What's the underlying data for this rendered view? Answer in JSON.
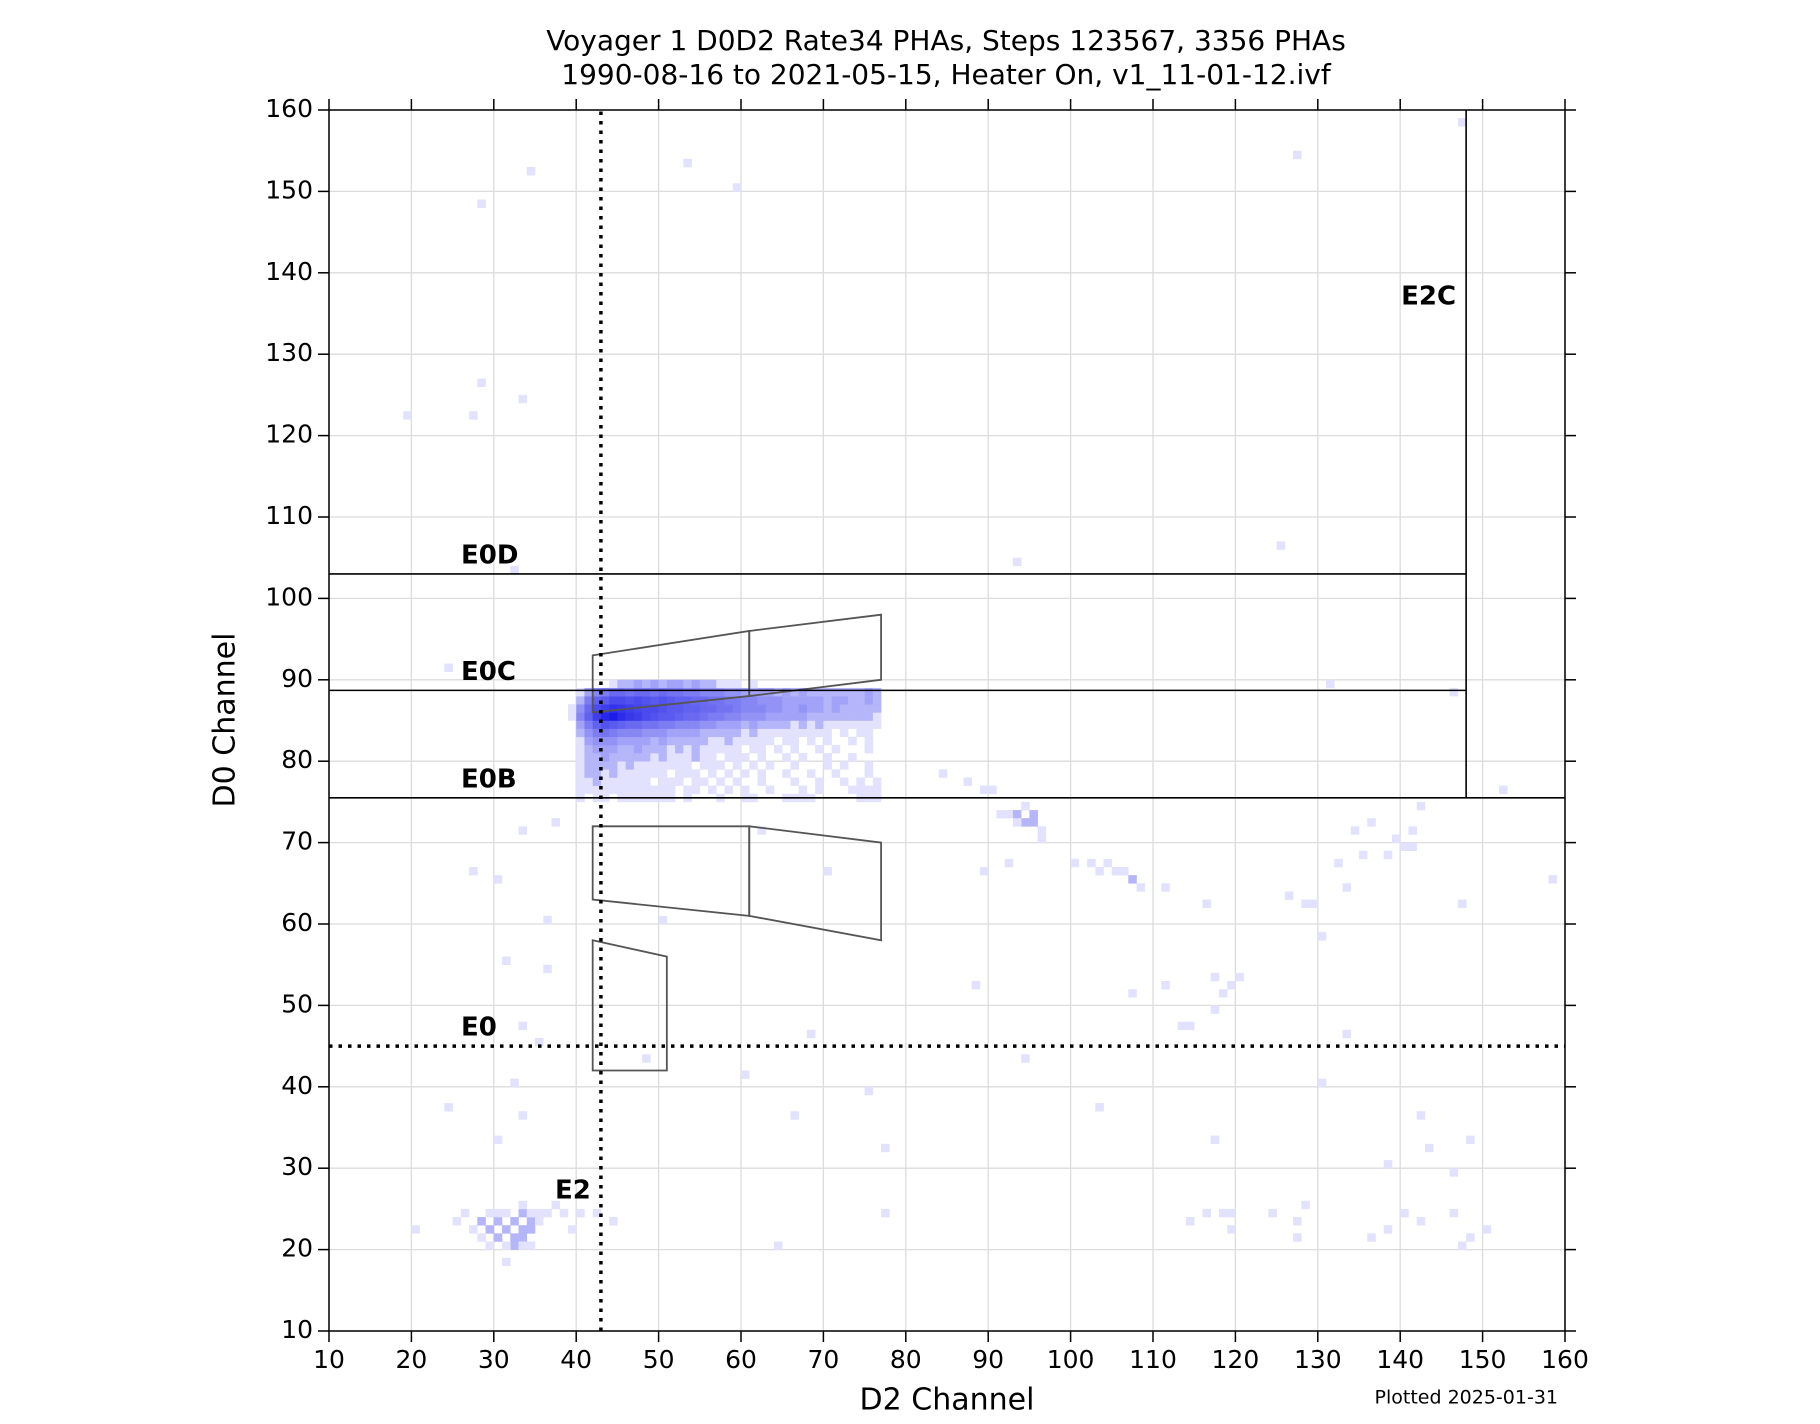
{
  "chart_data": {
    "type": "heatmap2d",
    "title": "Voyager 1 D0D2 Rate34 PHAs, Steps 123567, 3356 PHAs",
    "subtitle": "1990-08-16 to 2021-05-15, Heater On, v1_11-01-12.ivf",
    "xlabel": "D2 Channel",
    "ylabel": "D0 Channel",
    "note": "Plotted 2025-01-31",
    "xlim": [
      10,
      160
    ],
    "ylim": [
      10,
      160
    ],
    "xticks": [
      10,
      20,
      30,
      40,
      50,
      60,
      70,
      80,
      90,
      100,
      110,
      120,
      130,
      140,
      150,
      160
    ],
    "yticks": [
      10,
      20,
      30,
      40,
      50,
      60,
      70,
      80,
      90,
      100,
      110,
      120,
      130,
      140,
      150,
      160
    ],
    "grid": true,
    "cmap_colors": [
      "#e2e2ff",
      "#1c1ce8"
    ],
    "cells": [
      [
        19,
        122,
        1
      ],
      [
        27,
        122,
        1
      ],
      [
        28,
        126,
        1
      ],
      [
        33,
        124,
        1
      ],
      [
        28,
        148,
        1
      ],
      [
        34,
        152,
        1
      ],
      [
        53,
        153,
        1
      ],
      [
        59,
        150,
        1
      ],
      [
        147,
        158,
        1
      ],
      [
        127,
        154,
        1
      ],
      [
        125,
        106,
        1
      ],
      [
        93,
        104,
        1
      ],
      [
        32,
        103,
        1
      ],
      [
        24,
        91,
        1
      ],
      [
        131,
        89,
        1
      ],
      [
        146,
        88,
        1
      ],
      [
        152,
        76,
        1
      ],
      [
        84,
        78,
        1
      ],
      [
        87,
        77,
        1
      ],
      [
        89,
        76,
        1
      ],
      [
        90,
        76,
        1
      ],
      [
        91,
        73,
        1
      ],
      [
        92,
        73,
        1
      ],
      [
        93,
        73,
        2
      ],
      [
        94,
        74,
        1
      ],
      [
        95,
        72,
        2
      ],
      [
        96,
        71,
        1
      ],
      [
        94,
        72,
        2
      ],
      [
        95,
        73,
        2
      ],
      [
        93,
        72,
        1
      ],
      [
        96,
        70,
        1
      ],
      [
        100,
        67,
        1
      ],
      [
        103,
        66,
        1
      ],
      [
        104,
        67,
        1
      ],
      [
        105,
        66,
        1
      ],
      [
        106,
        66,
        1
      ],
      [
        107,
        65,
        2
      ],
      [
        108,
        64,
        1
      ],
      [
        102,
        67,
        1
      ],
      [
        92,
        67,
        1
      ],
      [
        89,
        66,
        1
      ],
      [
        111,
        64,
        1
      ],
      [
        116,
        62,
        1
      ],
      [
        126,
        63,
        1
      ],
      [
        128,
        62,
        1
      ],
      [
        129,
        62,
        1
      ],
      [
        132,
        67,
        1
      ],
      [
        133,
        64,
        1
      ],
      [
        134,
        71,
        1
      ],
      [
        135,
        68,
        1
      ],
      [
        136,
        72,
        1
      ],
      [
        138,
        68,
        1
      ],
      [
        139,
        70,
        1
      ],
      [
        140,
        69,
        1
      ],
      [
        141,
        71,
        1
      ],
      [
        141,
        69,
        1
      ],
      [
        142,
        74,
        1
      ],
      [
        147,
        62,
        1
      ],
      [
        158,
        65,
        1
      ],
      [
        130,
        58,
        1
      ],
      [
        88,
        52,
        1
      ],
      [
        107,
        51,
        1
      ],
      [
        111,
        52,
        1
      ],
      [
        113,
        47,
        1
      ],
      [
        114,
        47,
        1
      ],
      [
        117,
        49,
        1
      ],
      [
        117,
        53,
        1
      ],
      [
        118,
        51,
        1
      ],
      [
        119,
        52,
        1
      ],
      [
        120,
        53,
        1
      ],
      [
        133,
        46,
        1
      ],
      [
        130,
        40,
        1
      ],
      [
        103,
        37,
        1
      ],
      [
        94,
        43,
        1
      ],
      [
        75,
        39,
        1
      ],
      [
        77,
        32,
        1
      ],
      [
        66,
        36,
        1
      ],
      [
        60,
        41,
        1
      ],
      [
        48,
        43,
        1
      ],
      [
        68,
        46,
        1
      ],
      [
        50,
        60,
        1
      ],
      [
        70,
        66,
        1
      ],
      [
        62,
        71,
        1
      ],
      [
        33,
        71,
        1
      ],
      [
        37,
        72,
        1
      ],
      [
        27,
        66,
        1
      ],
      [
        30,
        65,
        1
      ],
      [
        31,
        55,
        1
      ],
      [
        36,
        54,
        1
      ],
      [
        36,
        60,
        1
      ],
      [
        32,
        40,
        1
      ],
      [
        33,
        36,
        1
      ],
      [
        24,
        37,
        1
      ],
      [
        30,
        33,
        1
      ],
      [
        33,
        47,
        1
      ],
      [
        35,
        45,
        1
      ],
      [
        117,
        33,
        1
      ],
      [
        138,
        30,
        1
      ],
      [
        142,
        36,
        1
      ],
      [
        143,
        32,
        1
      ],
      [
        146,
        29,
        1
      ],
      [
        148,
        33,
        1
      ],
      [
        142,
        23,
        1
      ],
      [
        140,
        24,
        1
      ],
      [
        138,
        22,
        1
      ],
      [
        136,
        21,
        1
      ],
      [
        127,
        21,
        1
      ],
      [
        127,
        23,
        1
      ],
      [
        128,
        25,
        1
      ],
      [
        124,
        24,
        1
      ],
      [
        119,
        22,
        1
      ],
      [
        118,
        24,
        1
      ],
      [
        119,
        24,
        1
      ],
      [
        116,
        24,
        1
      ],
      [
        114,
        23,
        1
      ],
      [
        146,
        24,
        1
      ],
      [
        147,
        20,
        1
      ],
      [
        148,
        21,
        1
      ],
      [
        150,
        22,
        1
      ],
      [
        77,
        24,
        1
      ],
      [
        64,
        20,
        1
      ],
      [
        20,
        22,
        1
      ],
      [
        25,
        23,
        1
      ],
      [
        26,
        24,
        1
      ],
      [
        27,
        22,
        1
      ],
      [
        28,
        23,
        2
      ],
      [
        28,
        21,
        1
      ],
      [
        29,
        22,
        2
      ],
      [
        29,
        20,
        1
      ],
      [
        30,
        23,
        2
      ],
      [
        30,
        21,
        2
      ],
      [
        31,
        22,
        2
      ],
      [
        31,
        24,
        1
      ],
      [
        31,
        18,
        1
      ],
      [
        32,
        20,
        2
      ],
      [
        32,
        23,
        2
      ],
      [
        33,
        21,
        2
      ],
      [
        33,
        22,
        2
      ],
      [
        33,
        24,
        2
      ],
      [
        33,
        25,
        1
      ],
      [
        34,
        22,
        2
      ],
      [
        34,
        23,
        2
      ],
      [
        34,
        24,
        1
      ],
      [
        35,
        23,
        1
      ],
      [
        35,
        24,
        1
      ],
      [
        36,
        24,
        1
      ],
      [
        37,
        25,
        1
      ],
      [
        38,
        24,
        1
      ],
      [
        39,
        22,
        1
      ],
      [
        40,
        24,
        1
      ],
      [
        42,
        24,
        1
      ],
      [
        44,
        23,
        1
      ],
      [
        32,
        21,
        2
      ],
      [
        31,
        20,
        1
      ],
      [
        30,
        24,
        1
      ],
      [
        29,
        24,
        1
      ],
      [
        34,
        20,
        1
      ],
      [
        33,
        20,
        1
      ]
    ],
    "block": {
      "x_start": 39,
      "y_start": 75,
      "counts": [
        [
          0,
          1,
          0,
          1,
          1,
          0,
          1,
          1,
          1,
          1,
          1,
          1,
          1,
          0,
          1,
          0,
          0,
          0,
          1,
          0,
          0,
          1,
          1,
          0,
          0,
          0,
          1,
          1,
          1,
          1,
          0,
          0,
          0,
          0,
          0,
          1,
          1,
          1
        ],
        [
          0,
          1,
          1,
          1,
          1,
          1,
          1,
          1,
          1,
          1,
          1,
          1,
          1,
          0,
          1,
          1,
          0,
          1,
          0,
          1,
          0,
          1,
          0,
          0,
          1,
          0,
          0,
          0,
          1,
          0,
          1,
          0,
          0,
          0,
          1,
          1,
          1,
          1
        ],
        [
          0,
          1,
          1,
          2,
          1,
          1,
          1,
          1,
          1,
          1,
          0,
          1,
          1,
          1,
          0,
          1,
          1,
          0,
          1,
          0,
          1,
          0,
          0,
          1,
          0,
          0,
          0,
          1,
          0,
          0,
          1,
          0,
          0,
          1,
          0,
          1,
          0,
          1
        ],
        [
          0,
          1,
          2,
          2,
          1,
          2,
          1,
          1,
          1,
          1,
          1,
          1,
          0,
          1,
          1,
          1,
          0,
          1,
          0,
          1,
          0,
          1,
          0,
          1,
          0,
          0,
          1,
          0,
          0,
          1,
          0,
          0,
          1,
          0,
          0,
          0,
          1,
          0
        ],
        [
          0,
          1,
          2,
          2,
          2,
          2,
          1,
          2,
          1,
          1,
          1,
          1,
          1,
          1,
          1,
          0,
          1,
          1,
          1,
          0,
          1,
          0,
          1,
          0,
          1,
          0,
          0,
          1,
          0,
          0,
          0,
          1,
          0,
          1,
          0,
          0,
          1,
          0
        ],
        [
          0,
          1,
          2,
          2,
          3,
          2,
          2,
          2,
          2,
          2,
          1,
          2,
          1,
          1,
          1,
          2,
          1,
          1,
          0,
          1,
          1,
          1,
          0,
          1,
          0,
          0,
          1,
          0,
          1,
          0,
          0,
          1,
          0,
          0,
          1,
          0,
          0,
          0
        ],
        [
          0,
          1,
          2,
          3,
          3,
          3,
          2,
          2,
          3,
          2,
          2,
          2,
          1,
          2,
          1,
          2,
          1,
          1,
          1,
          1,
          1,
          0,
          1,
          1,
          0,
          1,
          0,
          1,
          0,
          0,
          1,
          0,
          1,
          0,
          0,
          0,
          1,
          0
        ],
        [
          0,
          1,
          3,
          4,
          4,
          4,
          3,
          3,
          3,
          3,
          2,
          3,
          2,
          2,
          2,
          2,
          2,
          1,
          1,
          2,
          1,
          1,
          1,
          1,
          1,
          0,
          1,
          1,
          0,
          1,
          0,
          1,
          0,
          0,
          1,
          0,
          1,
          0
        ],
        [
          0,
          2,
          4,
          6,
          7,
          6,
          5,
          5,
          5,
          4,
          4,
          4,
          3,
          3,
          3,
          3,
          2,
          2,
          2,
          2,
          2,
          1,
          2,
          1,
          1,
          1,
          1,
          1,
          1,
          1,
          1,
          1,
          0,
          1,
          0,
          1,
          1,
          0
        ],
        [
          0,
          3,
          6,
          9,
          11,
          10,
          9,
          8,
          8,
          7,
          7,
          6,
          6,
          5,
          5,
          5,
          4,
          4,
          3,
          3,
          3,
          2,
          3,
          2,
          2,
          2,
          2,
          1,
          2,
          1,
          2,
          1,
          1,
          1,
          1,
          1,
          1,
          1
        ],
        [
          1,
          5,
          9,
          14,
          18,
          20,
          17,
          15,
          14,
          12,
          11,
          10,
          10,
          9,
          8,
          8,
          7,
          6,
          6,
          5,
          5,
          4,
          4,
          4,
          3,
          3,
          3,
          3,
          3,
          2,
          2,
          2,
          2,
          2,
          2,
          2,
          2,
          1
        ],
        [
          1,
          4,
          8,
          12,
          14,
          16,
          15,
          14,
          13,
          12,
          12,
          11,
          10,
          10,
          9,
          9,
          8,
          8,
          7,
          7,
          6,
          5,
          5,
          5,
          4,
          4,
          3,
          3,
          4,
          3,
          3,
          2,
          3,
          2,
          2,
          2,
          2,
          2
        ],
        [
          0,
          2,
          6,
          9,
          10,
          12,
          12,
          11,
          12,
          11,
          10,
          11,
          10,
          9,
          9,
          8,
          8,
          7,
          7,
          6,
          6,
          5,
          5,
          4,
          4,
          4,
          3,
          3,
          3,
          3,
          3,
          2,
          3,
          3,
          2,
          2,
          3,
          2
        ],
        [
          0,
          1,
          3,
          5,
          6,
          8,
          8,
          7,
          8,
          8,
          7,
          8,
          7,
          7,
          6,
          6,
          5,
          5,
          5,
          4,
          4,
          3,
          3,
          3,
          3,
          2,
          3,
          2,
          3,
          2,
          2,
          2,
          2,
          2,
          2,
          2,
          3,
          2
        ],
        [
          0,
          0,
          0,
          0,
          0,
          1,
          2,
          2,
          3,
          2,
          3,
          2,
          3,
          3,
          2,
          3,
          2,
          2,
          1,
          1,
          1,
          0,
          1,
          0,
          0,
          0,
          0,
          0,
          0,
          0,
          0,
          0,
          0,
          0,
          0,
          0,
          0,
          0
        ]
      ]
    },
    "boundaries": [
      {
        "label": "E0D",
        "x": [
          10,
          148
        ],
        "y": [
          103,
          103
        ],
        "style": "solid"
      },
      {
        "label": "E0C",
        "x": [
          10,
          148
        ],
        "y": [
          88.7,
          88.7
        ],
        "style": "solid"
      },
      {
        "label": "E0B",
        "x": [
          10,
          160
        ],
        "y": [
          75.5,
          75.5
        ],
        "style": "solid"
      },
      {
        "label": "E2C",
        "x": [
          148,
          148
        ],
        "y": [
          75.5,
          160
        ],
        "style": "solid"
      },
      {
        "label": "E0",
        "x": [
          10,
          160
        ],
        "y": [
          45,
          45
        ],
        "style": "dotted"
      },
      {
        "label": "E2",
        "x": [
          43,
          43
        ],
        "y": [
          10,
          160
        ],
        "style": "dotted"
      }
    ],
    "regions": [
      {
        "x": [
          42,
          61,
          61,
          42
        ],
        "y": [
          93,
          96,
          88,
          86
        ]
      },
      {
        "x": [
          61,
          77,
          77,
          61
        ],
        "y": [
          96,
          98,
          90,
          88
        ]
      },
      {
        "x": [
          42,
          61,
          61,
          42
        ],
        "y": [
          72,
          72,
          61,
          63
        ]
      },
      {
        "x": [
          61,
          77,
          77,
          61
        ],
        "y": [
          72,
          70,
          58,
          61
        ]
      },
      {
        "x": [
          42,
          51,
          51,
          42
        ],
        "y": [
          58,
          56,
          42,
          42
        ]
      }
    ]
  }
}
